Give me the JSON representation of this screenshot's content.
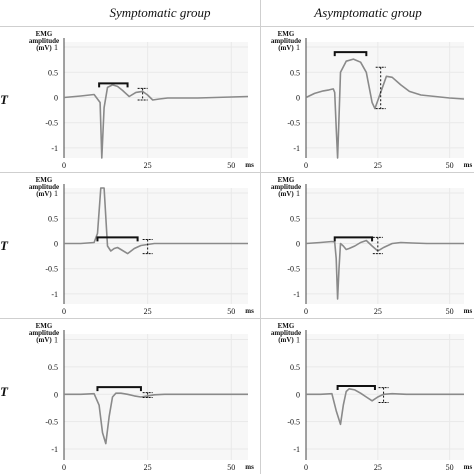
{
  "header": {
    "col1": "Symptomatic group",
    "col2": "Asymptomatic group"
  },
  "rows": [
    {
      "label": "T"
    },
    {
      "label": "T"
    },
    {
      "label": "T"
    }
  ],
  "axis": {
    "ylabel_line1": "EMG",
    "ylabel_line2": "amplitude",
    "ylabel_line3": "(mV)",
    "unit": "ms"
  },
  "chart_data": [
    {
      "type": "line",
      "panel": "row1-symptomatic",
      "xlabel": "ms",
      "ylabel": "EMG amplitude (mV)",
      "xlim": [
        0,
        55
      ],
      "ylim": [
        -1.2,
        1.1
      ],
      "xticks": [
        0,
        25,
        50
      ],
      "yticks": [
        1,
        0.5,
        0,
        -0.5,
        -1
      ],
      "ytick_labels": [
        "1",
        "0.5",
        "0",
        "-0.5",
        "-1"
      ],
      "grid": true,
      "series": [
        {
          "x": [
            0,
            5,
            9,
            10.8,
            11.3,
            12,
            13,
            14.5,
            16,
            17.5,
            19.5,
            21.5,
            23.5,
            25,
            26.5,
            28.5,
            31,
            35,
            40,
            45,
            50,
            55
          ],
          "y": [
            0,
            0.03,
            0.06,
            -0.1,
            -1.2,
            -0.2,
            0.2,
            0.25,
            0.22,
            0.14,
            0.02,
            0.1,
            0.12,
            0.05,
            -0.05,
            -0.03,
            -0.01,
            -0.01,
            -0.01,
            0,
            0.01,
            0.02
          ]
        }
      ]
    },
    {
      "type": "line",
      "panel": "row1-asymptomatic",
      "xlabel": "ms",
      "ylabel": "EMG amplitude (mV)",
      "xlim": [
        0,
        55
      ],
      "ylim": [
        -1.2,
        1.1
      ],
      "xticks": [
        0,
        25,
        50
      ],
      "yticks": [
        1,
        0.5,
        0,
        -0.5,
        -1
      ],
      "ytick_labels": [
        "1",
        "0.5",
        "0",
        "-0.5",
        "-1"
      ],
      "grid": true,
      "series": [
        {
          "x": [
            0,
            3,
            6,
            8,
            9.5,
            10,
            10.5,
            11,
            11.5,
            12,
            14,
            16.5,
            19,
            21,
            22,
            23,
            24,
            26,
            28,
            30,
            33,
            36,
            40,
            45,
            50,
            55
          ],
          "y": [
            0,
            0.08,
            0.13,
            0.15,
            0.17,
            0.1,
            -0.6,
            -1.2,
            -0.4,
            0.5,
            0.72,
            0.76,
            0.7,
            0.5,
            0.2,
            -0.1,
            -0.22,
            0.1,
            0.42,
            0.4,
            0.25,
            0.12,
            0.05,
            0.02,
            -0.01,
            -0.03
          ]
        }
      ]
    },
    {
      "type": "line",
      "panel": "row2-symptomatic",
      "xlabel": "ms",
      "ylabel": "EMG amplitude (mV)",
      "xlim": [
        0,
        55
      ],
      "ylim": [
        -1.2,
        1.1
      ],
      "xticks": [
        0,
        25,
        50
      ],
      "yticks": [
        1,
        0.5,
        0,
        -0.5,
        -1
      ],
      "ytick_labels": [
        "1",
        "0.5",
        "0",
        "-0.5",
        "-1"
      ],
      "grid": true,
      "series": [
        {
          "x": [
            0,
            5,
            9,
            10,
            11,
            12,
            13,
            14,
            15,
            16,
            17,
            19,
            21,
            23,
            25,
            27,
            30,
            35,
            40,
            45,
            50,
            55
          ],
          "y": [
            0,
            0,
            0.02,
            0.2,
            1.1,
            1.1,
            -0.05,
            -0.15,
            -0.1,
            -0.08,
            -0.12,
            -0.2,
            -0.1,
            -0.04,
            -0.02,
            0,
            0,
            0,
            0,
            0,
            0,
            0
          ]
        }
      ]
    },
    {
      "type": "line",
      "panel": "row2-asymptomatic",
      "xlabel": "ms",
      "ylabel": "EMG amplitude (mV)",
      "xlim": [
        0,
        55
      ],
      "ylim": [
        -1.2,
        1.1
      ],
      "xticks": [
        0,
        25,
        50
      ],
      "yticks": [
        1,
        0.5,
        0,
        -0.5,
        -1
      ],
      "ytick_labels": [
        "1",
        "0.5",
        "0",
        "-0.5",
        "-1"
      ],
      "grid": true,
      "series": [
        {
          "x": [
            0,
            5,
            9,
            10,
            10.5,
            11,
            11.5,
            12,
            13,
            14,
            15,
            17,
            19,
            21,
            23,
            25,
            27,
            30,
            33,
            37,
            42,
            47,
            55
          ],
          "y": [
            0,
            0.02,
            0.04,
            0.03,
            -0.3,
            -1.1,
            -0.5,
            0,
            -0.05,
            -0.12,
            -0.1,
            -0.05,
            0.02,
            0.06,
            -0.05,
            -0.15,
            -0.08,
            0,
            0.02,
            0.01,
            0,
            0,
            0
          ]
        }
      ]
    },
    {
      "type": "line",
      "panel": "row3-symptomatic",
      "xlabel": "ms",
      "ylabel": "EMG amplitude (mV)",
      "xlim": [
        0,
        55
      ],
      "ylim": [
        -1.2,
        1.1
      ],
      "xticks": [
        0,
        25,
        50
      ],
      "yticks": [
        1,
        0.5,
        0,
        -0.5,
        -1
      ],
      "ytick_labels": [
        "1",
        "0.5",
        "0",
        "-0.5",
        "-1"
      ],
      "grid": true,
      "series": [
        {
          "x": [
            0,
            5,
            9,
            10.5,
            11.5,
            12.5,
            13.5,
            14.5,
            15.5,
            17,
            19,
            21,
            23,
            25,
            27,
            30,
            35,
            40,
            45,
            50,
            55
          ],
          "y": [
            0,
            0,
            0.01,
            -0.2,
            -0.7,
            -0.9,
            -0.4,
            -0.05,
            0.02,
            0.02,
            0,
            -0.03,
            -0.05,
            -0.03,
            -0.01,
            0,
            0,
            0,
            0,
            0,
            0
          ]
        }
      ]
    },
    {
      "type": "line",
      "panel": "row3-asymptomatic",
      "xlabel": "ms",
      "ylabel": "EMG amplitude (mV)",
      "xlim": [
        0,
        55
      ],
      "ylim": [
        -1.2,
        1.1
      ],
      "xticks": [
        0,
        25,
        50
      ],
      "yticks": [
        1,
        0.5,
        0,
        -0.5,
        -1
      ],
      "ytick_labels": [
        "1",
        "0.5",
        "0",
        "-0.5",
        "-1"
      ],
      "grid": true,
      "series": [
        {
          "x": [
            0,
            5,
            9,
            10.5,
            12,
            13,
            14,
            15,
            17,
            19,
            21,
            23,
            25,
            27,
            30,
            35,
            40,
            45,
            50,
            55
          ],
          "y": [
            0,
            0,
            0.01,
            -0.3,
            -0.55,
            -0.2,
            0.05,
            0.1,
            0.08,
            0.02,
            -0.05,
            -0.12,
            -0.05,
            0,
            0.01,
            0,
            0,
            0,
            0,
            0
          ]
        }
      ]
    }
  ],
  "annotations": [
    {
      "panel": 0,
      "bracket": [
        10.5,
        19
      ],
      "bracket_y": 0.28,
      "dash": [
        23.5,
        0.18,
        -0.05
      ]
    },
    {
      "panel": 1,
      "bracket": [
        10,
        21
      ],
      "bracket_y": 0.9,
      "dash": [
        26,
        0.6,
        -0.22
      ]
    },
    {
      "panel": 2,
      "bracket": [
        10,
        22
      ],
      "bracket_y": 0.12,
      "dash": [
        25,
        0.08,
        -0.2
      ]
    },
    {
      "panel": 3,
      "bracket": [
        10,
        23
      ],
      "bracket_y": 0.12,
      "dash": [
        25,
        0.12,
        -0.2
      ]
    },
    {
      "panel": 4,
      "bracket": [
        10,
        23
      ],
      "bracket_y": 0.13,
      "dash": [
        25,
        0.03,
        -0.06
      ]
    },
    {
      "panel": 5,
      "bracket": [
        11,
        24
      ],
      "bracket_y": 0.15,
      "dash": [
        27,
        0.12,
        -0.15
      ]
    }
  ],
  "colors": {
    "trace": "#8a8a8a",
    "axis": "#444444",
    "grid": "#e9e9e9",
    "bracket": "#111111"
  }
}
